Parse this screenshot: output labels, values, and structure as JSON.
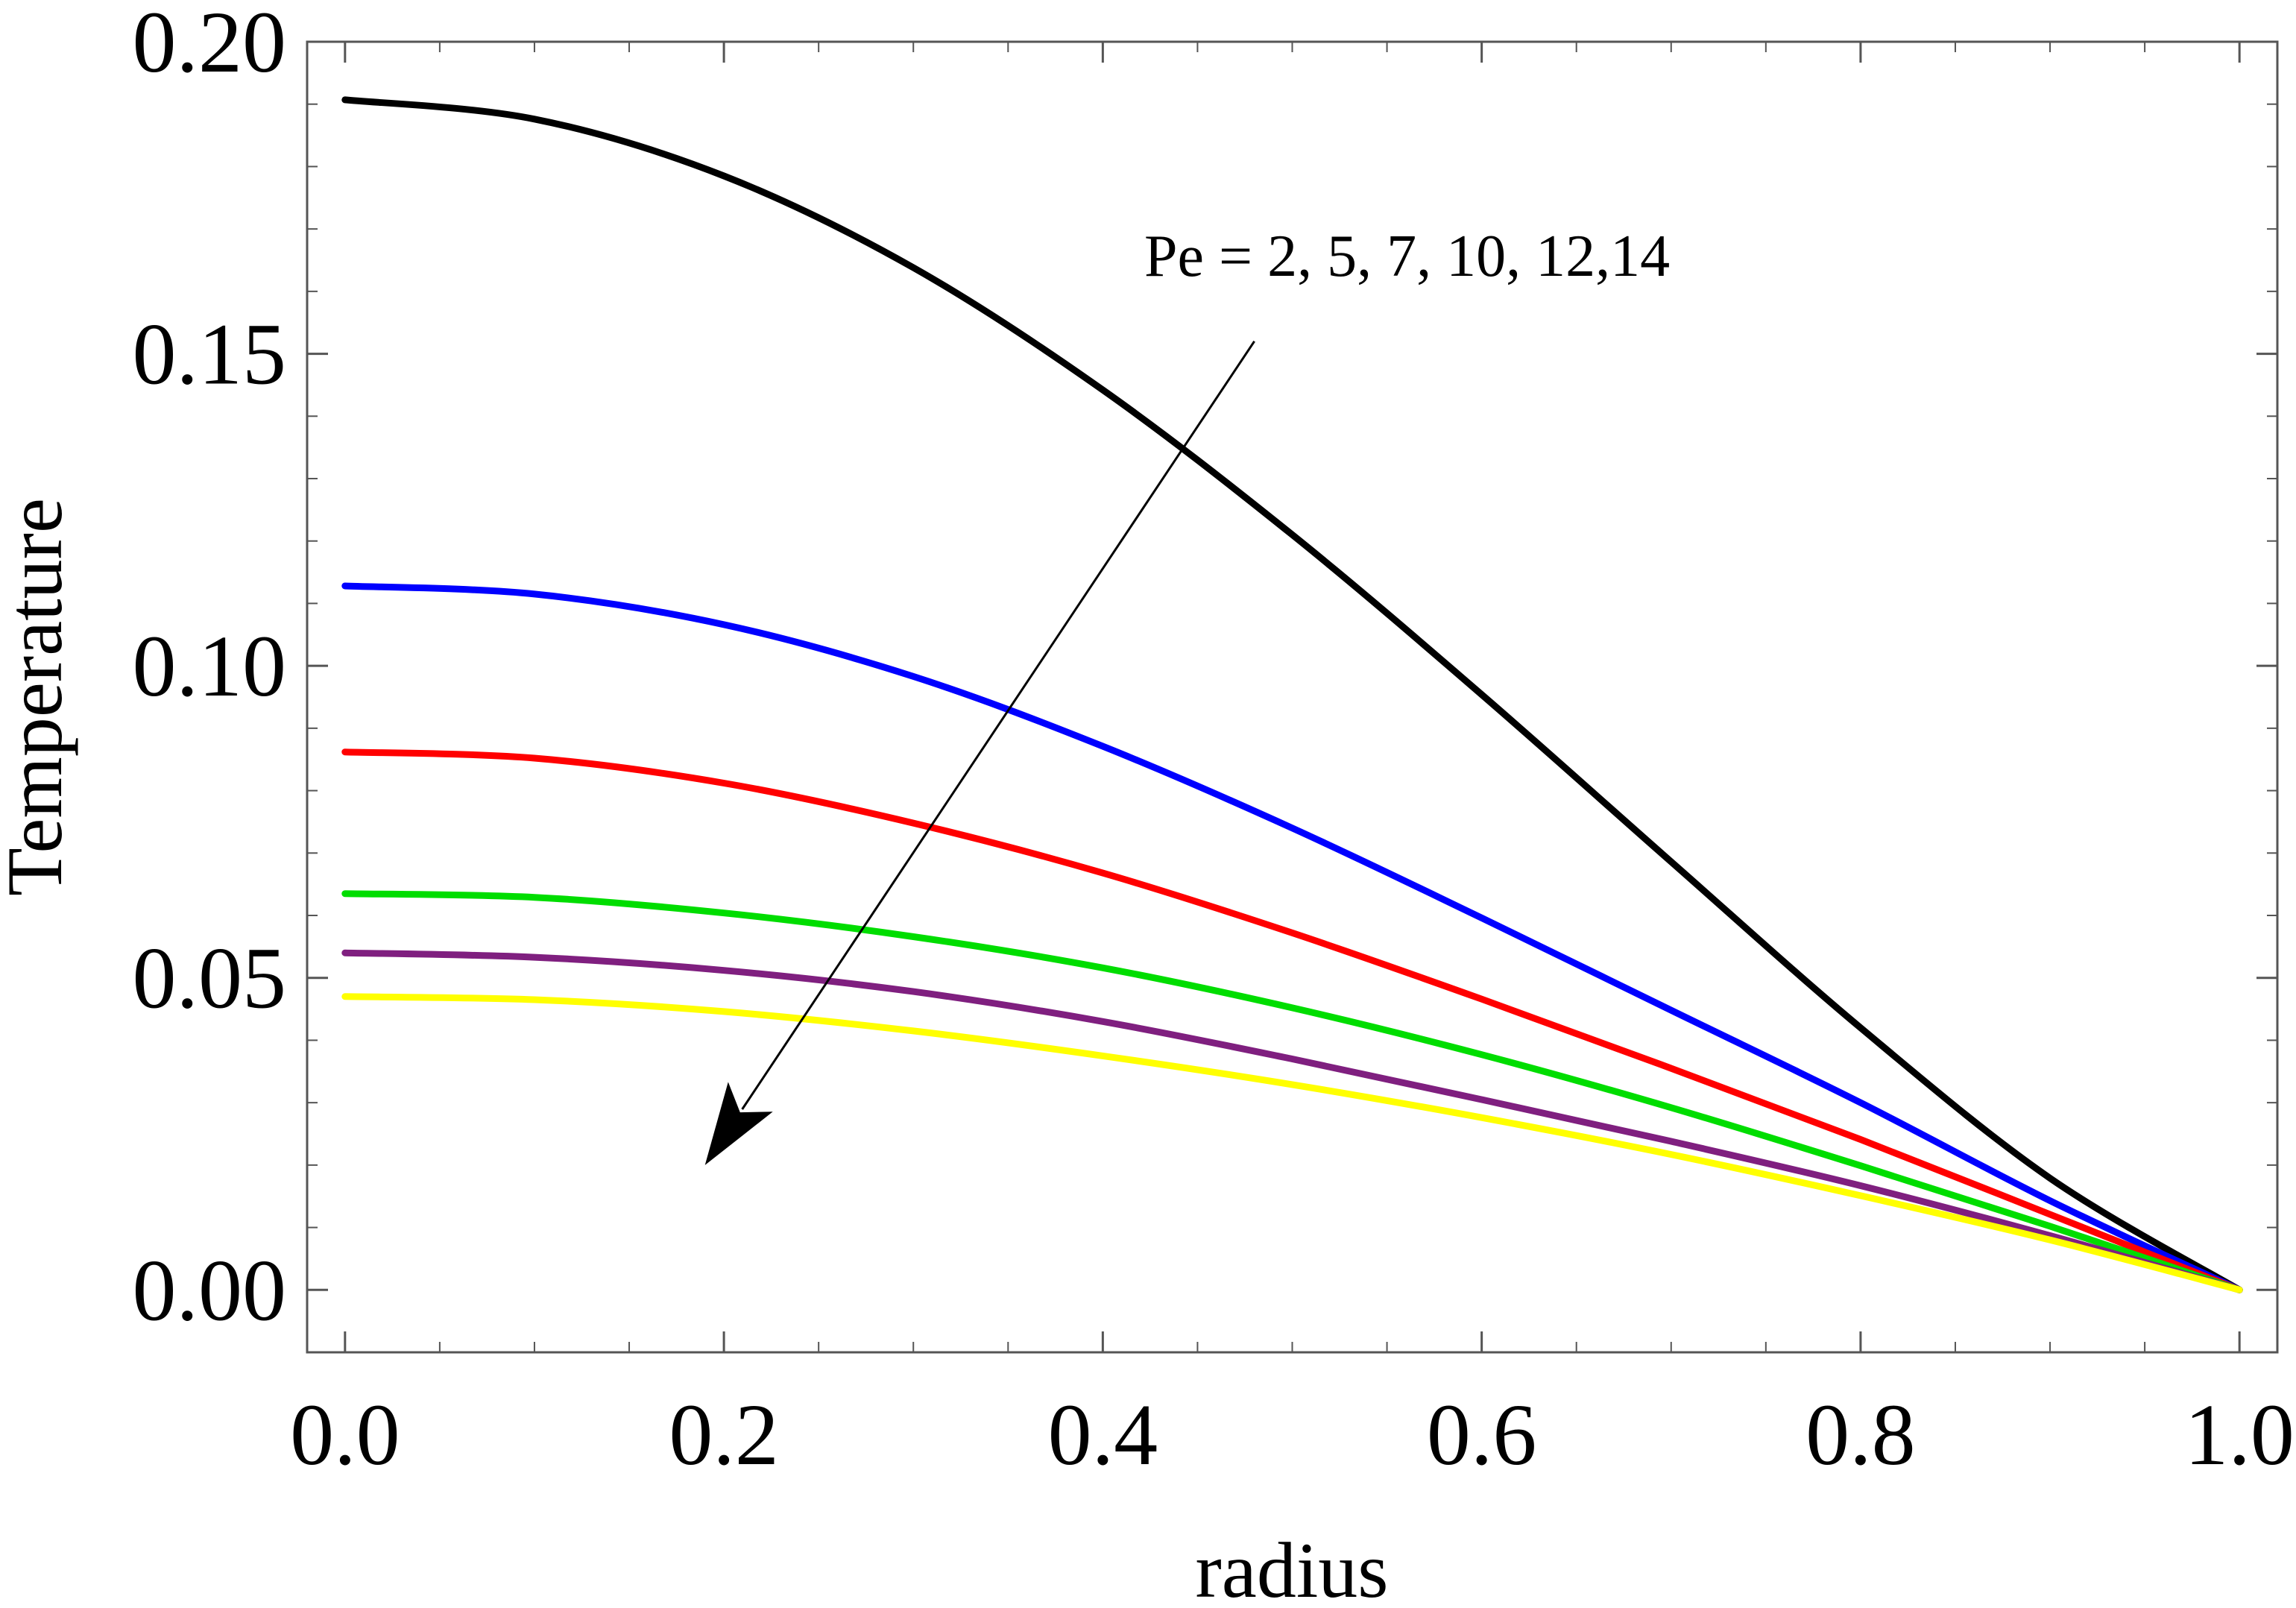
{
  "chart_data": {
    "type": "line",
    "title": "",
    "xlabel": "radius",
    "ylabel": "Temperature",
    "xlim": [
      -0.02,
      1.02
    ],
    "ylim": [
      -0.01,
      0.2
    ],
    "grid": false,
    "x_ticks": [
      0.0,
      0.2,
      0.4,
      0.6,
      0.8,
      1.0
    ],
    "y_ticks": [
      0.0,
      0.05,
      0.1,
      0.15,
      0.2
    ],
    "x_tick_labels": [
      "0.0",
      "0.2",
      "0.4",
      "0.6",
      "0.8",
      "1.0"
    ],
    "y_tick_labels": [
      "0.00",
      "0.05",
      "0.10",
      "0.15",
      "0.20"
    ],
    "annotation": {
      "text": "Pe = 2, 5, 7, 10, 12,14",
      "arrow_from": [
        0.48,
        0.152
      ],
      "arrow_to": [
        0.19,
        0.02
      ]
    },
    "x": [
      0.0,
      0.1,
      0.2,
      0.3,
      0.4,
      0.5,
      0.6,
      0.7,
      0.8,
      0.9,
      1.0
    ],
    "series": [
      {
        "name": "Pe = 2",
        "color": "#000000",
        "values": [
          0.1907,
          0.1876,
          0.1785,
          0.1638,
          0.1442,
          0.121,
          0.0954,
          0.0686,
          0.042,
          0.0179,
          0.0
        ]
      },
      {
        "name": "Pe = 5",
        "color": "#0000ff",
        "values": [
          0.1128,
          0.1115,
          0.1066,
          0.0983,
          0.0871,
          0.074,
          0.0596,
          0.0448,
          0.03,
          0.0143,
          0.0
        ]
      },
      {
        "name": "Pe = 7",
        "color": "#ff0000",
        "values": [
          0.0862,
          0.0852,
          0.0812,
          0.0748,
          0.0668,
          0.0572,
          0.0466,
          0.0355,
          0.0241,
          0.0121,
          0.0
        ]
      },
      {
        "name": "Pe = 10",
        "color": "#00dd00",
        "values": [
          0.0635,
          0.0629,
          0.0604,
          0.0566,
          0.0516,
          0.0452,
          0.0377,
          0.0292,
          0.0199,
          0.0102,
          0.0
        ]
      },
      {
        "name": "Pe = 12",
        "color": "#7f1f7f",
        "values": [
          0.054,
          0.0533,
          0.0512,
          0.0478,
          0.043,
          0.037,
          0.0305,
          0.0238,
          0.0167,
          0.0087,
          0.0
        ]
      },
      {
        "name": "Pe = 14",
        "color": "#ffff00",
        "values": [
          0.047,
          0.0465,
          0.0446,
          0.0415,
          0.0375,
          0.0329,
          0.0276,
          0.0217,
          0.0151,
          0.008,
          0.0
        ]
      }
    ]
  }
}
